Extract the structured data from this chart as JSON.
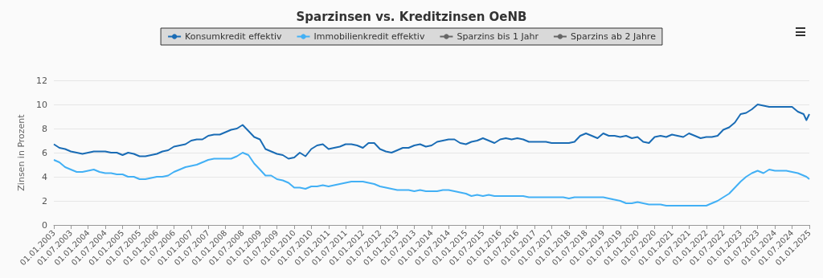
{
  "chart_data": {
    "type": "line",
    "title": "Sparzinsen vs. Kreditzinsen OeNB",
    "ylabel": "Zinsen in Prozent",
    "x": [
      "2003-01",
      "2003-03",
      "2003-05",
      "2003-07",
      "2003-09",
      "2003-11",
      "2004-01",
      "2004-03",
      "2004-05",
      "2004-07",
      "2004-09",
      "2004-11",
      "2005-01",
      "2005-03",
      "2005-05",
      "2005-07",
      "2005-09",
      "2005-11",
      "2006-01",
      "2006-03",
      "2006-05",
      "2006-07",
      "2006-09",
      "2006-11",
      "2007-01",
      "2007-03",
      "2007-05",
      "2007-07",
      "2007-09",
      "2007-11",
      "2008-01",
      "2008-03",
      "2008-05",
      "2008-07",
      "2008-09",
      "2008-11",
      "2009-01",
      "2009-03",
      "2009-05",
      "2009-07",
      "2009-09",
      "2009-11",
      "2010-01",
      "2010-03",
      "2010-05",
      "2010-07",
      "2010-09",
      "2010-11",
      "2011-01",
      "2011-03",
      "2011-05",
      "2011-07",
      "2011-09",
      "2011-11",
      "2012-01",
      "2012-03",
      "2012-05",
      "2012-07",
      "2012-09",
      "2012-11",
      "2013-01",
      "2013-03",
      "2013-05",
      "2013-07",
      "2013-09",
      "2013-11",
      "2014-01",
      "2014-03",
      "2014-05",
      "2014-07",
      "2014-09",
      "2014-11",
      "2015-01",
      "2015-03",
      "2015-05",
      "2015-07",
      "2015-09",
      "2015-11",
      "2016-01",
      "2016-03",
      "2016-05",
      "2016-07",
      "2016-09",
      "2016-11",
      "2017-01",
      "2017-03",
      "2017-05",
      "2017-07",
      "2017-09",
      "2017-11",
      "2018-01",
      "2018-03",
      "2018-05",
      "2018-07",
      "2018-09",
      "2018-11",
      "2019-01",
      "2019-03",
      "2019-05",
      "2019-07",
      "2019-09",
      "2019-11",
      "2020-01",
      "2020-03",
      "2020-05",
      "2020-07",
      "2020-09",
      "2020-11",
      "2021-01",
      "2021-03",
      "2021-05",
      "2021-07",
      "2021-09",
      "2021-11",
      "2022-01",
      "2022-03",
      "2022-05",
      "2022-07",
      "2022-09",
      "2022-11",
      "2023-01",
      "2023-03",
      "2023-05",
      "2023-07",
      "2023-09",
      "2023-11",
      "2024-01",
      "2024-03",
      "2024-05",
      "2024-07",
      "2024-09",
      "2024-11",
      "2024-12",
      "2025-01"
    ],
    "series": [
      {
        "name": "Konsumkredit effektiv",
        "color": "#1a6cb5",
        "values": [
          6.7,
          6.4,
          6.3,
          6.1,
          6.0,
          5.9,
          6.0,
          6.1,
          6.1,
          6.1,
          6.0,
          6.0,
          5.8,
          6.0,
          5.9,
          5.7,
          5.7,
          5.8,
          5.9,
          6.1,
          6.2,
          6.5,
          6.6,
          6.7,
          7.0,
          7.1,
          7.1,
          7.4,
          7.5,
          7.5,
          7.7,
          7.9,
          8.0,
          8.3,
          7.8,
          7.3,
          7.1,
          6.3,
          6.1,
          5.9,
          5.8,
          5.5,
          5.6,
          6.0,
          5.7,
          6.3,
          6.6,
          6.7,
          6.3,
          6.4,
          6.5,
          6.7,
          6.7,
          6.6,
          6.4,
          6.8,
          6.8,
          6.3,
          6.1,
          6.0,
          6.2,
          6.4,
          6.4,
          6.6,
          6.7,
          6.5,
          6.6,
          6.9,
          7.0,
          7.1,
          7.1,
          6.8,
          6.7,
          6.9,
          7.0,
          7.2,
          7.0,
          6.8,
          7.1,
          7.2,
          7.1,
          7.2,
          7.1,
          6.9,
          6.9,
          6.9,
          6.9,
          6.8,
          6.8,
          6.8,
          6.8,
          6.9,
          7.4,
          7.6,
          7.4,
          7.2,
          7.6,
          7.4,
          7.4,
          7.3,
          7.4,
          7.2,
          7.3,
          6.9,
          6.8,
          7.3,
          7.4,
          7.3,
          7.5,
          7.4,
          7.3,
          7.6,
          7.4,
          7.2,
          7.3,
          7.3,
          7.4,
          7.9,
          8.1,
          8.5,
          9.2,
          9.3,
          9.6,
          10.0,
          9.9,
          9.8,
          9.8,
          9.8,
          9.8,
          9.8,
          9.4,
          9.2,
          8.7,
          9.2
        ]
      },
      {
        "name": "Immobilienkredit effektiv",
        "color": "#42b0f5",
        "values": [
          5.4,
          5.2,
          4.8,
          4.6,
          4.4,
          4.4,
          4.5,
          4.6,
          4.4,
          4.3,
          4.3,
          4.2,
          4.2,
          4.0,
          4.0,
          3.8,
          3.8,
          3.9,
          4.0,
          4.0,
          4.1,
          4.4,
          4.6,
          4.8,
          4.9,
          5.0,
          5.2,
          5.4,
          5.5,
          5.5,
          5.5,
          5.5,
          5.7,
          6.0,
          5.8,
          5.1,
          4.6,
          4.1,
          4.1,
          3.8,
          3.7,
          3.5,
          3.1,
          3.1,
          3.0,
          3.2,
          3.2,
          3.3,
          3.2,
          3.3,
          3.4,
          3.5,
          3.6,
          3.6,
          3.6,
          3.5,
          3.4,
          3.2,
          3.1,
          3.0,
          2.9,
          2.9,
          2.9,
          2.8,
          2.9,
          2.8,
          2.8,
          2.8,
          2.9,
          2.9,
          2.8,
          2.7,
          2.6,
          2.4,
          2.5,
          2.4,
          2.5,
          2.4,
          2.4,
          2.4,
          2.4,
          2.4,
          2.4,
          2.3,
          2.3,
          2.3,
          2.3,
          2.3,
          2.3,
          2.3,
          2.2,
          2.3,
          2.3,
          2.3,
          2.3,
          2.3,
          2.3,
          2.2,
          2.1,
          2.0,
          1.8,
          1.8,
          1.9,
          1.8,
          1.7,
          1.7,
          1.7,
          1.6,
          1.6,
          1.6,
          1.6,
          1.6,
          1.6,
          1.6,
          1.6,
          1.8,
          2.0,
          2.3,
          2.6,
          3.1,
          3.6,
          4.0,
          4.3,
          4.5,
          4.3,
          4.6,
          4.5,
          4.5,
          4.5,
          4.4,
          4.3,
          4.1,
          4.0,
          3.8
        ]
      },
      {
        "name": "Sparzins bis 1 Jahr",
        "color": "#666666",
        "values": [
          null,
          null,
          null,
          null,
          null,
          null,
          null,
          null,
          null,
          null,
          null,
          null,
          null,
          null,
          null,
          null,
          null,
          null,
          null,
          null,
          null,
          null,
          null,
          null,
          null,
          null,
          null,
          null,
          null,
          null,
          null,
          null,
          null,
          null,
          null,
          null,
          null,
          null,
          null,
          null,
          null,
          null,
          null,
          null,
          null,
          null,
          null,
          null,
          null,
          null,
          null,
          null,
          null,
          null,
          null,
          null,
          null,
          null,
          null,
          null,
          null,
          null,
          null,
          null,
          null,
          null,
          null,
          null,
          null,
          null,
          null,
          null,
          null,
          null,
          null,
          null,
          null,
          null,
          null,
          null,
          null,
          null,
          null,
          null,
          null,
          null,
          null,
          null,
          null,
          null,
          null,
          null,
          null,
          null,
          null,
          null,
          null,
          null,
          null,
          null,
          null,
          null,
          null,
          null,
          null,
          null,
          null,
          null,
          null,
          null,
          null,
          null,
          null,
          null,
          null,
          null,
          null,
          null,
          null,
          null,
          null,
          null,
          null,
          null,
          null,
          null,
          null,
          null,
          null,
          null,
          null,
          null,
          null,
          null
        ]
      },
      {
        "name": "Sparzins ab 2 Jahre",
        "color": "#666666",
        "values": [
          null,
          null,
          null,
          null,
          null,
          null,
          null,
          null,
          null,
          null,
          null,
          null,
          null,
          null,
          null,
          null,
          null,
          null,
          null,
          null,
          null,
          null,
          null,
          null,
          null,
          null,
          null,
          null,
          null,
          null,
          null,
          null,
          null,
          null,
          null,
          null,
          null,
          null,
          null,
          null,
          null,
          null,
          null,
          null,
          null,
          null,
          null,
          null,
          null,
          null,
          null,
          null,
          null,
          null,
          null,
          null,
          null,
          null,
          null,
          null,
          null,
          null,
          null,
          null,
          null,
          null,
          null,
          null,
          null,
          null,
          null,
          null,
          null,
          null,
          null,
          null,
          null,
          null,
          null,
          null,
          null,
          null,
          null,
          null,
          null,
          null,
          null,
          null,
          null,
          null,
          null,
          null,
          null,
          null,
          null,
          null,
          null,
          null,
          null,
          null,
          null,
          null,
          null,
          null,
          null,
          null,
          null,
          null,
          null,
          null,
          null,
          null,
          null,
          null,
          null,
          null,
          null,
          null,
          null,
          null,
          null,
          null,
          null,
          null,
          null,
          null,
          null,
          null,
          null,
          null,
          null,
          null,
          null,
          null
        ]
      }
    ],
    "xlim": [
      "2003-01",
      "2025-01"
    ],
    "xticks": [
      {
        "value": "2003-01",
        "label": "01.01.2003"
      },
      {
        "value": "2003-07",
        "label": "01.07.2003"
      },
      {
        "value": "2004-01",
        "label": "01.01.2004"
      },
      {
        "value": "2004-07",
        "label": "01.07.2004"
      },
      {
        "value": "2005-01",
        "label": "01.01.2005"
      },
      {
        "value": "2005-07",
        "label": "01.07.2005"
      },
      {
        "value": "2006-01",
        "label": "01.01.2006"
      },
      {
        "value": "2006-07",
        "label": "01.07.2006"
      },
      {
        "value": "2007-01",
        "label": "01.01.2007"
      },
      {
        "value": "2007-07",
        "label": "01.07.2007"
      },
      {
        "value": "2008-01",
        "label": "01.01.2008"
      },
      {
        "value": "2008-07",
        "label": "01.07.2008"
      },
      {
        "value": "2009-01",
        "label": "01.01.2009"
      },
      {
        "value": "2009-07",
        "label": "01.07.2009"
      },
      {
        "value": "2010-01",
        "label": "01.01.2010"
      },
      {
        "value": "2010-07",
        "label": "01.07.2010"
      },
      {
        "value": "2011-01",
        "label": "01.01.2011"
      },
      {
        "value": "2011-07",
        "label": "01.07.2011"
      },
      {
        "value": "2012-01",
        "label": "01.01.2012"
      },
      {
        "value": "2012-07",
        "label": "01.07.2012"
      },
      {
        "value": "2013-01",
        "label": "01.01.2013"
      },
      {
        "value": "2013-07",
        "label": "01.07.2013"
      },
      {
        "value": "2014-01",
        "label": "01.01.2014"
      },
      {
        "value": "2014-07",
        "label": "01.07.2014"
      },
      {
        "value": "2015-01",
        "label": "01.01.2015"
      },
      {
        "value": "2015-07",
        "label": "01.07.2015"
      },
      {
        "value": "2016-01",
        "label": "01.01.2016"
      },
      {
        "value": "2016-07",
        "label": "01.07.2016"
      },
      {
        "value": "2017-01",
        "label": "01.01.2017"
      },
      {
        "value": "2017-07",
        "label": "01.07.2017"
      },
      {
        "value": "2018-01",
        "label": "01.01.2018"
      },
      {
        "value": "2018-07",
        "label": "01.07.2018"
      },
      {
        "value": "2019-01",
        "label": "01.01.2019"
      },
      {
        "value": "2019-07",
        "label": "01.07.2019"
      },
      {
        "value": "2020-01",
        "label": "01.01.2020"
      },
      {
        "value": "2020-07",
        "label": "01.07.2020"
      },
      {
        "value": "2021-01",
        "label": "01.01.2021"
      },
      {
        "value": "2021-07",
        "label": "01.07.2021"
      },
      {
        "value": "2022-01",
        "label": "01.01.2022"
      },
      {
        "value": "2022-07",
        "label": "01.07.2022"
      },
      {
        "value": "2023-01",
        "label": "01.01.2023"
      },
      {
        "value": "2023-07",
        "label": "01.07.2023"
      },
      {
        "value": "2024-01",
        "label": "01.01.2024"
      },
      {
        "value": "2024-07",
        "label": "01.07.2024"
      },
      {
        "value": "2025-01",
        "label": "01.01.2025"
      }
    ],
    "ylim": [
      0,
      12
    ],
    "yticks": [
      0,
      2,
      4,
      6,
      8,
      10,
      12
    ],
    "grid": "y",
    "legend": "top"
  }
}
